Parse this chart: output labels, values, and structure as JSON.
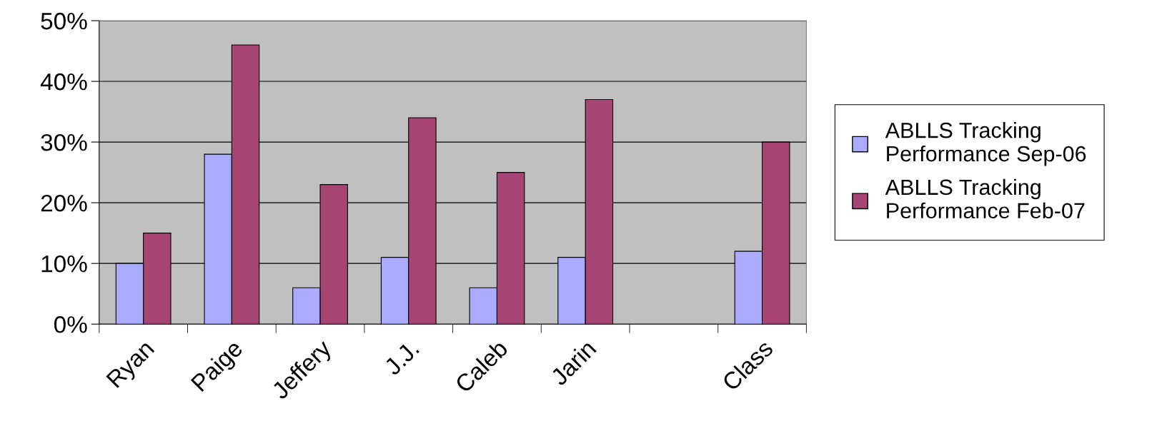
{
  "chart_data": {
    "type": "bar",
    "categories": [
      "Ryan",
      "Paige",
      "Jeffery",
      "J.J.",
      "Caleb",
      "Jarin",
      null,
      "Class"
    ],
    "series": [
      {
        "name": "ABLLS Tracking Performance Sep-06",
        "color": "#aaaaff",
        "values": [
          10,
          28,
          6,
          11,
          6,
          11,
          null,
          12
        ]
      },
      {
        "name": "ABLLS Tracking Performance Feb-07",
        "color": "#a64573",
        "values": [
          15,
          46,
          23,
          34,
          25,
          37,
          null,
          30
        ]
      }
    ],
    "ylim": [
      0,
      50
    ],
    "yticks": [
      {
        "value": 0,
        "label": "0%"
      },
      {
        "value": 10,
        "label": "10%"
      },
      {
        "value": 20,
        "label": "20%"
      },
      {
        "value": 30,
        "label": "30%"
      },
      {
        "value": 40,
        "label": "40%"
      },
      {
        "value": 50,
        "label": "50%"
      }
    ],
    "grid": "y",
    "legend": "right"
  }
}
